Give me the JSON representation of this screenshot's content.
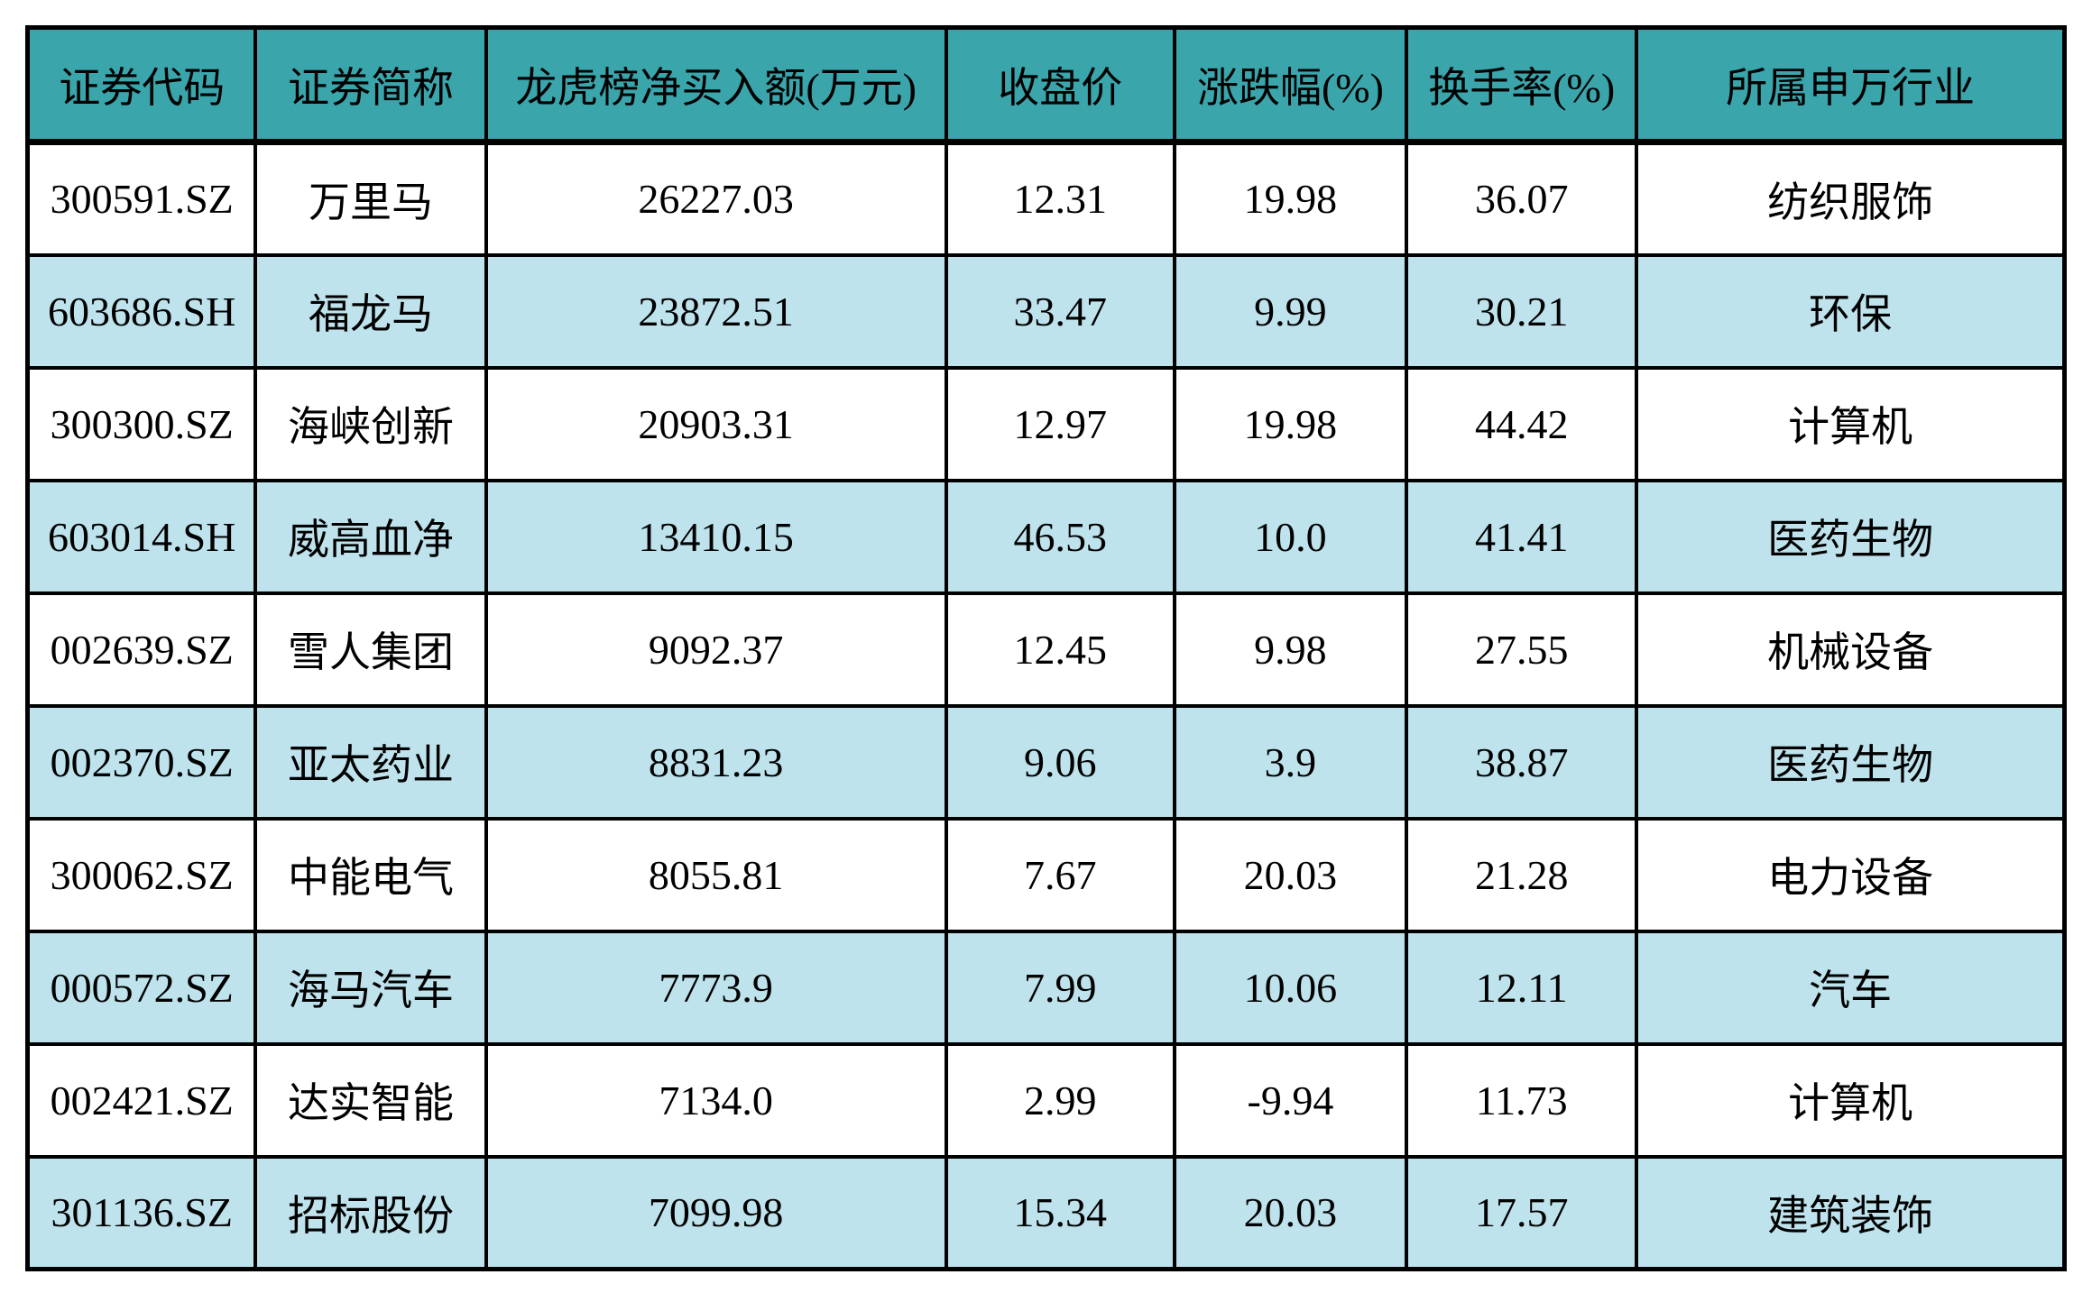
{
  "style": {
    "header_bg": "#3aa5ab",
    "row_bg": "#ffffff",
    "row_alt_bg": "#bee3ec",
    "border_color": "#000000",
    "text_color": "#000000"
  },
  "chart_data": {
    "type": "table",
    "title": "",
    "columns": [
      "证券代码",
      "证券简称",
      "龙虎榜净买入额(万元)",
      "收盘价",
      "涨跌幅(%)",
      "换手率(%)",
      "所属申万行业"
    ],
    "rows": [
      [
        "300591.SZ",
        "万里马",
        "26227.03",
        "12.31",
        "19.98",
        "36.07",
        "纺织服饰"
      ],
      [
        "603686.SH",
        "福龙马",
        "23872.51",
        "33.47",
        "9.99",
        "30.21",
        "环保"
      ],
      [
        "300300.SZ",
        "海峡创新",
        "20903.31",
        "12.97",
        "19.98",
        "44.42",
        "计算机"
      ],
      [
        "603014.SH",
        "威高血净",
        "13410.15",
        "46.53",
        "10.0",
        "41.41",
        "医药生物"
      ],
      [
        "002639.SZ",
        "雪人集团",
        "9092.37",
        "12.45",
        "9.98",
        "27.55",
        "机械设备"
      ],
      [
        "002370.SZ",
        "亚太药业",
        "8831.23",
        "9.06",
        "3.9",
        "38.87",
        "医药生物"
      ],
      [
        "300062.SZ",
        "中能电气",
        "8055.81",
        "7.67",
        "20.03",
        "21.28",
        "电力设备"
      ],
      [
        "000572.SZ",
        "海马汽车",
        "7773.9",
        "7.99",
        "10.06",
        "12.11",
        "汽车"
      ],
      [
        "002421.SZ",
        "达实智能",
        "7134.0",
        "2.99",
        "-9.94",
        "11.73",
        "计算机"
      ],
      [
        "301136.SZ",
        "招标股份",
        "7099.98",
        "15.34",
        "20.03",
        "17.57",
        "建筑装饰"
      ]
    ]
  }
}
